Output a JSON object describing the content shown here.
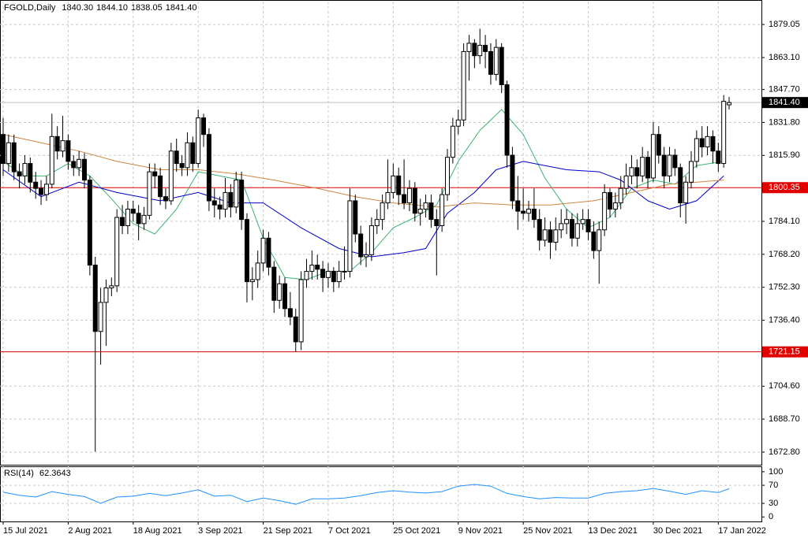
{
  "chart_data": {
    "type": "candlestick",
    "title": "FGOLD,Daily",
    "value_labels": [
      "1840.30",
      "1844.10",
      "1838.05",
      "1841.40"
    ],
    "categories": [
      "15 Jul 2021",
      null,
      null,
      null,
      null,
      null,
      null,
      null,
      null,
      null,
      null,
      null,
      "2 Aug 2021",
      null,
      null,
      null,
      null,
      null,
      null,
      null,
      null,
      null,
      null,
      null,
      "18 Aug 2021",
      null,
      null,
      null,
      null,
      null,
      null,
      null,
      null,
      null,
      null,
      null,
      "3 Sep 2021",
      null,
      null,
      null,
      null,
      null,
      null,
      null,
      null,
      null,
      null,
      null,
      "21 Sep 2021",
      null,
      null,
      null,
      null,
      null,
      null,
      null,
      null,
      null,
      null,
      null,
      "7 Oct 2021",
      null,
      null,
      null,
      null,
      null,
      null,
      null,
      null,
      null,
      null,
      null,
      "25 Oct 2021",
      null,
      null,
      null,
      null,
      null,
      null,
      null,
      null,
      null,
      null,
      null,
      "9 Nov 2021",
      null,
      null,
      null,
      null,
      null,
      null,
      null,
      null,
      null,
      null,
      null,
      "25 Nov 2021",
      null,
      null,
      null,
      null,
      null,
      null,
      null,
      null,
      null,
      null,
      null,
      "13 Dec 2021",
      null,
      null,
      null,
      null,
      null,
      null,
      null,
      null,
      null,
      null,
      null,
      "30 Dec 2021",
      null,
      null,
      null,
      null,
      null,
      null,
      null,
      null,
      null,
      null,
      null,
      "17 Jan 2022",
      null,
      null
    ],
    "ohlc": [
      [
        1826,
        1834,
        1806,
        1812
      ],
      [
        1812,
        1826,
        1808,
        1822
      ],
      [
        1822,
        1826,
        1804,
        1808
      ],
      [
        1808,
        1812,
        1800,
        1806
      ],
      [
        1806,
        1816,
        1802,
        1812
      ],
      [
        1812,
        1815,
        1798,
        1803
      ],
      [
        1803,
        1808,
        1795,
        1800
      ],
      [
        1800,
        1804,
        1792,
        1797
      ],
      [
        1797,
        1806,
        1794,
        1802
      ],
      [
        1802,
        1836,
        1800,
        1825
      ],
      [
        1825,
        1830,
        1814,
        1818
      ],
      [
        1818,
        1835,
        1815,
        1823
      ],
      [
        1823,
        1826,
        1809,
        1813
      ],
      [
        1813,
        1816,
        1806,
        1810
      ],
      [
        1810,
        1818,
        1806,
        1814
      ],
      [
        1814,
        1817,
        1800,
        1804
      ],
      [
        1804,
        1806,
        1758,
        1763
      ],
      [
        1763,
        1767,
        1673,
        1731
      ],
      [
        1731,
        1752,
        1715,
        1745
      ],
      [
        1745,
        1756,
        1724,
        1752
      ],
      [
        1752,
        1757,
        1748,
        1753
      ],
      [
        1753,
        1790,
        1750,
        1786
      ],
      [
        1786,
        1792,
        1778,
        1782
      ],
      [
        1782,
        1794,
        1778,
        1790
      ],
      [
        1790,
        1794,
        1784,
        1788
      ],
      [
        1788,
        1792,
        1775,
        1783
      ],
      [
        1783,
        1791,
        1780,
        1787
      ],
      [
        1787,
        1812,
        1785,
        1808
      ],
      [
        1808,
        1812,
        1800,
        1806
      ],
      [
        1806,
        1810,
        1792,
        1796
      ],
      [
        1796,
        1800,
        1790,
        1794
      ],
      [
        1794,
        1822,
        1792,
        1818
      ],
      [
        1818,
        1824,
        1808,
        1812
      ],
      [
        1812,
        1816,
        1806,
        1810
      ],
      [
        1810,
        1827,
        1806,
        1822
      ],
      [
        1822,
        1825,
        1808,
        1812
      ],
      [
        1812,
        1838,
        1810,
        1834
      ],
      [
        1834,
        1836,
        1820,
        1826
      ],
      [
        1826,
        1829,
        1789,
        1794
      ],
      [
        1794,
        1800,
        1786,
        1792
      ],
      [
        1792,
        1796,
        1785,
        1790
      ],
      [
        1790,
        1805,
        1786,
        1798
      ],
      [
        1798,
        1802,
        1786,
        1791
      ],
      [
        1791,
        1808,
        1788,
        1804
      ],
      [
        1804,
        1808,
        1780,
        1785
      ],
      [
        1785,
        1788,
        1745,
        1755
      ],
      [
        1755,
        1762,
        1746,
        1756
      ],
      [
        1756,
        1770,
        1752,
        1764
      ],
      [
        1764,
        1780,
        1760,
        1776
      ],
      [
        1776,
        1779,
        1758,
        1762
      ],
      [
        1762,
        1765,
        1740,
        1746
      ],
      [
        1746,
        1758,
        1742,
        1754
      ],
      [
        1754,
        1757,
        1738,
        1742
      ],
      [
        1742,
        1750,
        1734,
        1738
      ],
      [
        1738,
        1742,
        1721.15,
        1726
      ],
      [
        1726,
        1760,
        1722,
        1756
      ],
      [
        1756,
        1766,
        1752,
        1760
      ],
      [
        1760,
        1770,
        1756,
        1763
      ],
      [
        1763,
        1768,
        1756,
        1761
      ],
      [
        1761,
        1765,
        1750,
        1757
      ],
      [
        1757,
        1764,
        1752,
        1760
      ],
      [
        1760,
        1762,
        1750,
        1755
      ],
      [
        1755,
        1765,
        1752,
        1760
      ],
      [
        1760,
        1772,
        1756,
        1760
      ],
      [
        1760,
        1800,
        1757,
        1794
      ],
      [
        1794,
        1797,
        1774,
        1778
      ],
      [
        1778,
        1782,
        1763,
        1767
      ],
      [
        1767,
        1774,
        1762,
        1768
      ],
      [
        1768,
        1786,
        1765,
        1782
      ],
      [
        1782,
        1790,
        1778,
        1785
      ],
      [
        1785,
        1797,
        1780,
        1793
      ],
      [
        1793,
        1814,
        1790,
        1798
      ],
      [
        1798,
        1812,
        1795,
        1806
      ],
      [
        1806,
        1810,
        1792,
        1797
      ],
      [
        1797,
        1814,
        1790,
        1793
      ],
      [
        1793,
        1804,
        1789,
        1800
      ],
      [
        1800,
        1803,
        1784,
        1788
      ],
      [
        1788,
        1795,
        1782,
        1790
      ],
      [
        1790,
        1797,
        1786,
        1793
      ],
      [
        1793,
        1797,
        1781,
        1785
      ],
      [
        1785,
        1790,
        1758,
        1782
      ],
      [
        1782,
        1800,
        1779,
        1797
      ],
      [
        1797,
        1819,
        1794,
        1815
      ],
      [
        1815,
        1834,
        1812,
        1830
      ],
      [
        1830,
        1838,
        1826,
        1833
      ],
      [
        1833,
        1870,
        1830,
        1866
      ],
      [
        1866,
        1874,
        1852,
        1870
      ],
      [
        1870,
        1872,
        1858,
        1864
      ],
      [
        1864,
        1877,
        1860,
        1869
      ],
      [
        1869,
        1874,
        1858,
        1866
      ],
      [
        1866,
        1870,
        1850,
        1855
      ],
      [
        1855,
        1872,
        1852,
        1868
      ],
      [
        1868,
        1870,
        1846,
        1850
      ],
      [
        1850,
        1852,
        1810,
        1816
      ],
      [
        1816,
        1820,
        1790,
        1794
      ],
      [
        1794,
        1806,
        1780,
        1789
      ],
      [
        1789,
        1800,
        1785,
        1788
      ],
      [
        1788,
        1794,
        1784,
        1790
      ],
      [
        1790,
        1800,
        1781,
        1785
      ],
      [
        1785,
        1790,
        1770,
        1775
      ],
      [
        1775,
        1786,
        1772,
        1780
      ],
      [
        1780,
        1784,
        1766,
        1774
      ],
      [
        1774,
        1786,
        1770,
        1780
      ],
      [
        1780,
        1790,
        1776,
        1783
      ],
      [
        1783,
        1790,
        1778,
        1785
      ],
      [
        1785,
        1788,
        1772,
        1776
      ],
      [
        1776,
        1788,
        1772,
        1783
      ],
      [
        1783,
        1790,
        1780,
        1785
      ],
      [
        1785,
        1790,
        1775,
        1779
      ],
      [
        1779,
        1784,
        1766,
        1770
      ],
      [
        1770,
        1784,
        1754,
        1780
      ],
      [
        1780,
        1802,
        1777,
        1798
      ],
      [
        1798,
        1800,
        1786,
        1790
      ],
      [
        1790,
        1798,
        1786,
        1793
      ],
      [
        1793,
        1806,
        1790,
        1800
      ],
      [
        1800,
        1812,
        1797,
        1806
      ],
      [
        1806,
        1816,
        1802,
        1810
      ],
      [
        1810,
        1814,
        1800,
        1806
      ],
      [
        1806,
        1820,
        1803,
        1815
      ],
      [
        1815,
        1818,
        1800,
        1805
      ],
      [
        1805,
        1832,
        1803,
        1826
      ],
      [
        1826,
        1830,
        1812,
        1816
      ],
      [
        1816,
        1820,
        1800,
        1806
      ],
      [
        1806,
        1820,
        1803,
        1816
      ],
      [
        1816,
        1819,
        1806,
        1810
      ],
      [
        1810,
        1812,
        1786,
        1793
      ],
      [
        1793,
        1806,
        1783,
        1803
      ],
      [
        1803,
        1818,
        1800,
        1813
      ],
      [
        1813,
        1828,
        1810,
        1824
      ],
      [
        1824,
        1830,
        1815,
        1820
      ],
      [
        1820,
        1830,
        1816,
        1825
      ],
      [
        1825,
        1828,
        1812,
        1818
      ],
      [
        1818,
        1822,
        1808,
        1812
      ],
      [
        1812,
        1845,
        1810,
        1842
      ],
      [
        1840.3,
        1844.1,
        1838.05,
        1841.4
      ]
    ],
    "series": [
      {
        "color": "#3cb371",
        "x": [
          0,
          4,
          8,
          12,
          16,
          20,
          24,
          28,
          32,
          36,
          40,
          44,
          48,
          52,
          56,
          60,
          64,
          68,
          72,
          76,
          80,
          84,
          88,
          92,
          96,
          100,
          104,
          108,
          112,
          116,
          120,
          124,
          128,
          133
        ],
        "values": [
          1813,
          1806,
          1806,
          1812,
          1806,
          1795,
          1783,
          1778,
          1790,
          1808,
          1806,
          1804,
          1776,
          1757,
          1756,
          1760,
          1760,
          1769,
          1781,
          1786,
          1792,
          1813,
          1828,
          1838,
          1826,
          1805,
          1790,
          1781,
          1786,
          1800,
          1804,
          1802,
          1811,
          1813
        ]
      },
      {
        "color": "#0000cd",
        "x": [
          0,
          7,
          14,
          21,
          29,
          36,
          42,
          48,
          55,
          62,
          68,
          74,
          78,
          82,
          87,
          91,
          96,
          100,
          104,
          110,
          114,
          119,
          123,
          128,
          133
        ],
        "values": [
          1809,
          1796,
          1803,
          1798,
          1794,
          1798,
          1793,
          1793,
          1781,
          1771,
          1767,
          1769,
          1771,
          1788,
          1798,
          1809,
          1813,
          1811,
          1809,
          1808,
          1804,
          1794,
          1790,
          1794,
          1806
        ]
      },
      {
        "color": "#cd853f",
        "x": [
          0,
          7,
          14,
          21,
          29,
          36,
          43,
          50,
          58,
          65,
          72,
          80,
          87,
          94,
          101,
          109,
          116,
          123,
          133
        ],
        "values": [
          1826,
          1822,
          1818,
          1813,
          1809,
          1809,
          1807,
          1804,
          1800,
          1796,
          1793,
          1791,
          1793,
          1792,
          1792,
          1794,
          1798,
          1802,
          1804
        ]
      }
    ],
    "levels": [
      {
        "value": 1841.4,
        "label": "1841.40",
        "color": "#c0c0c0",
        "box": "#000000"
      },
      {
        "value": 1800.35,
        "color": "#e00000",
        "box": "#e00000"
      },
      {
        "value": 1721.15,
        "color": "#e00000",
        "box": "#e00000"
      }
    ],
    "ylim": [
      1666.7,
      1890.1
    ],
    "yticks": [
      1879.05,
      {
        "value": 1863.1,
        "label": "1863.10"
      },
      {
        "value": 1847.7,
        "label": "1847.70"
      },
      {
        "value": 1831.8,
        "label": "1831.80"
      },
      {
        "value": 1815.9,
        "label": "1815.90"
      },
      {
        "value": 1784.1,
        "label": "1784.10"
      },
      {
        "value": 1768.2,
        "label": "1768.20"
      },
      {
        "value": 1752.3,
        "label": "1752.30"
      },
      {
        "value": 1736.4,
        "label": "1736.40"
      },
      {
        "value": 1704.6,
        "label": "1704.60"
      },
      {
        "value": 1688.7,
        "label": "1688.70"
      },
      {
        "value": 1672.8,
        "label": "1672.80"
      }
    ],
    "grid": true,
    "rsi": {
      "name": "RSI(14)",
      "color": "#1e90ff",
      "x": [
        0,
        3,
        6,
        9,
        12,
        15,
        18,
        21,
        24,
        27,
        30,
        33,
        36,
        39,
        42,
        45,
        48,
        51,
        54,
        57,
        60,
        63,
        66,
        69,
        72,
        75,
        78,
        81,
        84,
        87,
        90,
        93,
        96,
        99,
        102,
        105,
        108,
        111,
        114,
        117,
        120,
        123,
        126,
        129,
        132,
        134
      ],
      "values": [
        55,
        48,
        44,
        56,
        50,
        45,
        30,
        44,
        46,
        52,
        47,
        53,
        60,
        46,
        48,
        34,
        42,
        36,
        28,
        40,
        40,
        42,
        47,
        54,
        58,
        55,
        53,
        56,
        68,
        72,
        68,
        52,
        45,
        40,
        43,
        42,
        42,
        52,
        56,
        58,
        63,
        57,
        50,
        58,
        54,
        62.3643
      ],
      "ylim": [
        -10,
        112
      ],
      "yticks": [
        0,
        30,
        70,
        100
      ]
    }
  }
}
